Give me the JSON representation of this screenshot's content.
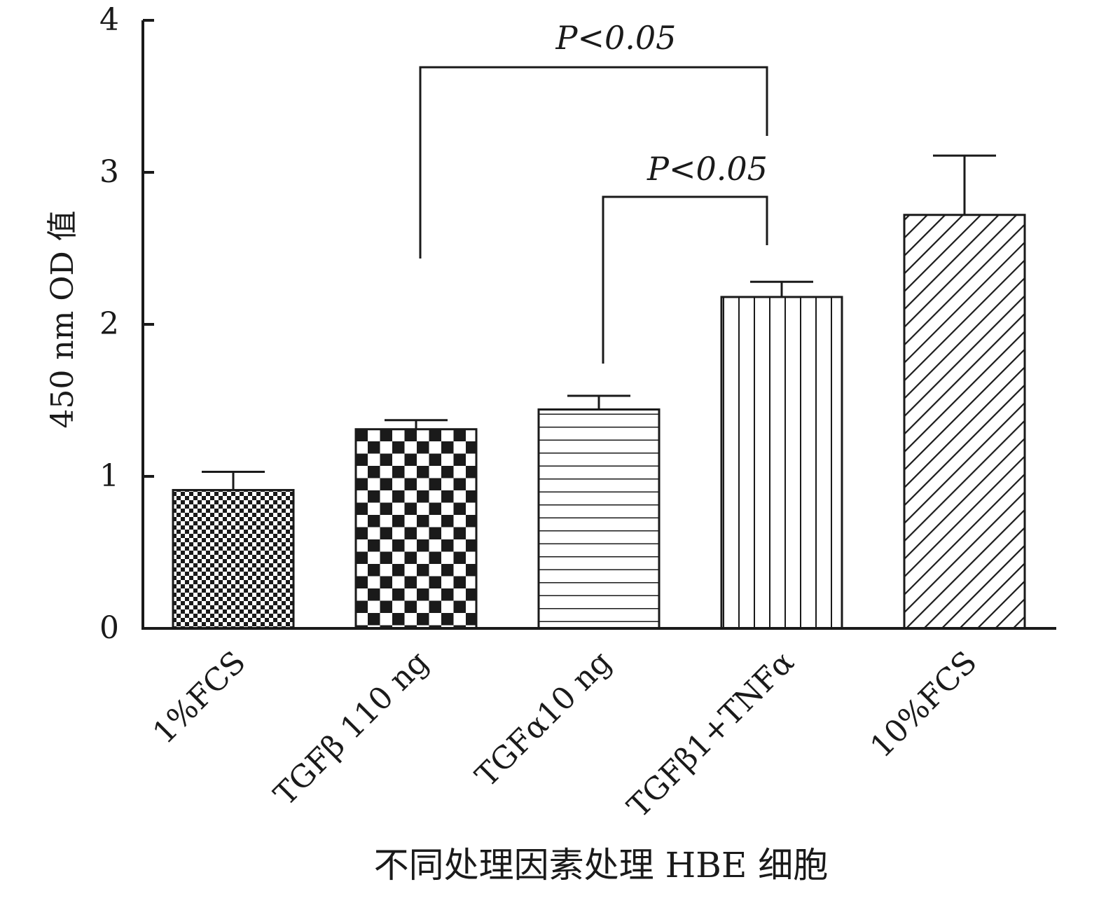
{
  "chart_data": {
    "type": "bar",
    "categories": [
      "1%FCS",
      "TGFβ 110 ng",
      "TGFα10 ng",
      "TGFβ1+TNFα",
      "10%FCS"
    ],
    "series": [
      {
        "values": [
          0.91,
          1.31,
          1.44,
          2.18,
          2.72
        ],
        "errors": [
          0.12,
          0.06,
          0.09,
          0.1,
          0.39
        ]
      }
    ],
    "patterns": [
      "fine-checker",
      "coarse-checker",
      "horizontal-lines",
      "vertical-lines",
      "diagonal-lines"
    ],
    "title": "",
    "xlabel": "不同处理因素处理 HBE 细胞",
    "ylabel": "450 nm OD 值",
    "ylim": [
      0,
      4
    ],
    "yticks": [
      0,
      1,
      2,
      3,
      4
    ],
    "grid": false,
    "legend": "none",
    "significance": [
      {
        "from": 1,
        "to": 3,
        "label": "P<0.05"
      },
      {
        "from": 2,
        "to": 3,
        "label": "P<0.05"
      }
    ],
    "colors": {
      "ink": "#1a1a1a",
      "background": "#ffffff"
    }
  }
}
